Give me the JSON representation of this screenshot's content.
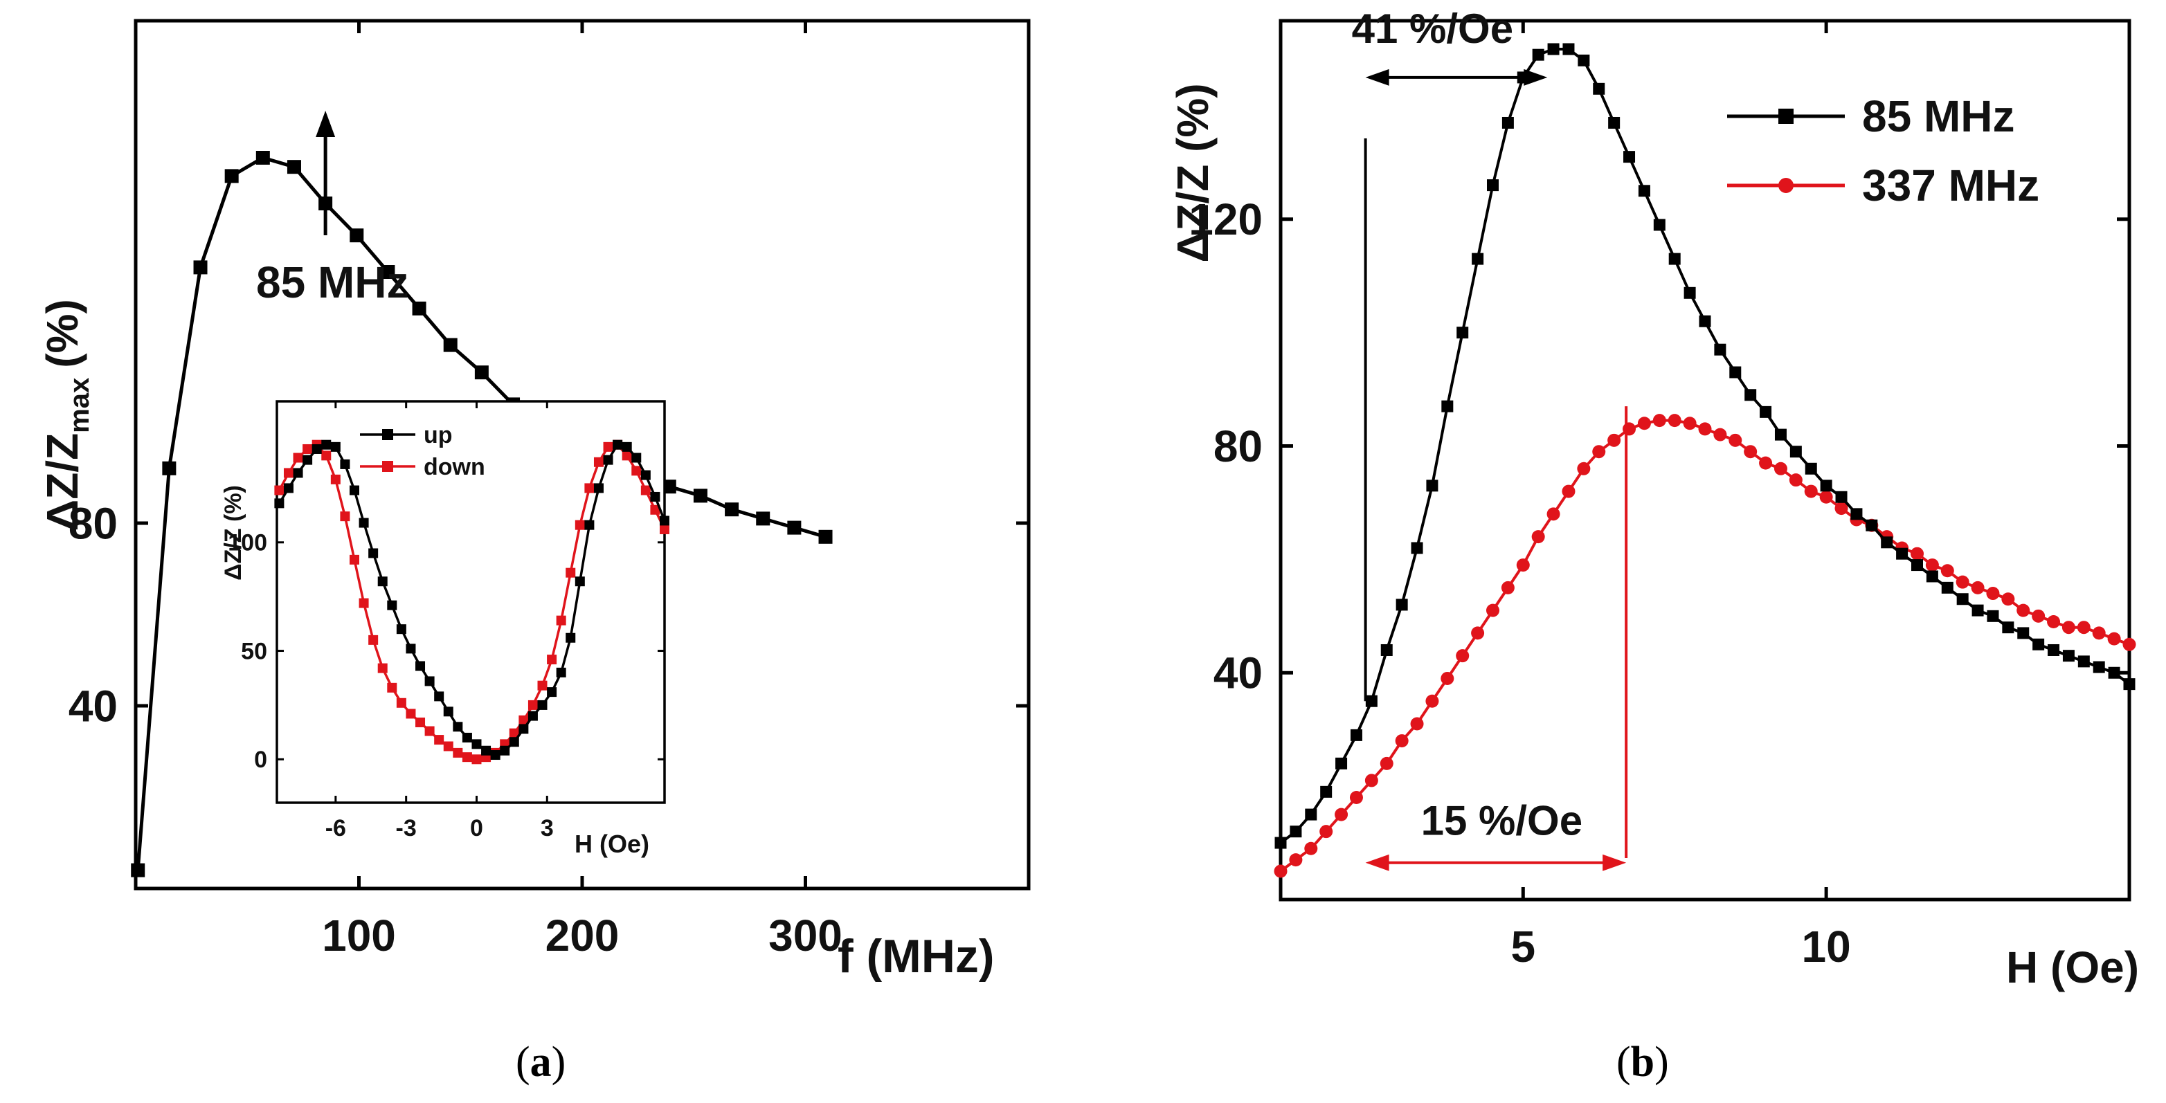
{
  "chart_data": [
    {
      "id": "a",
      "type": "line",
      "caption": "(a)",
      "caption_letter": "a",
      "ylabel": "ΔZ/Z",
      "ylabel_sub": "max",
      "ylabel_unit": "(%)",
      "xlabel": "f (MHz)",
      "xlim": [
        0,
        400
      ],
      "ylim": [
        0,
        190
      ],
      "xticks": [
        100,
        200,
        300
      ],
      "yticks": [
        40,
        80
      ],
      "annotation": "85 MHz",
      "annotation_x": 85,
      "series": [
        {
          "color": "#000000",
          "marker": "square",
          "x": [
            1,
            15,
            29,
            43,
            57,
            71,
            85,
            99,
            113,
            127,
            141,
            155,
            169,
            183,
            197,
            211,
            225,
            239,
            253,
            267,
            281,
            295,
            309
          ],
          "y": [
            4,
            92,
            136,
            156,
            160,
            158,
            150,
            143,
            135,
            127,
            119,
            113,
            106,
            101,
            96,
            93,
            90,
            88,
            86,
            83,
            81,
            79,
            77
          ]
        }
      ]
    },
    {
      "id": "a-inset",
      "type": "line",
      "ylabel": "ΔZ/Z (%)",
      "xlabel": "H (Oe)",
      "xlim": [
        -8.5,
        8
      ],
      "ylim": [
        -20,
        165
      ],
      "xticks": [
        -6,
        -3,
        0,
        3
      ],
      "xtick_labels": [
        "-6",
        "-3",
        "0",
        "3"
      ],
      "yticks": [
        0,
        50,
        100
      ],
      "legend_position": "top",
      "series": [
        {
          "name": "up",
          "color": "#000000",
          "marker": "square",
          "x": [
            -8.4,
            -8,
            -7.6,
            -7.2,
            -6.8,
            -6.4,
            -6,
            -5.6,
            -5.2,
            -4.8,
            -4.4,
            -4,
            -3.6,
            -3.2,
            -2.8,
            -2.4,
            -2,
            -1.6,
            -1.2,
            -0.8,
            -0.4,
            0,
            0.4,
            0.8,
            1.2,
            1.6,
            2,
            2.4,
            2.8,
            3.2,
            3.6,
            4,
            4.4,
            4.8,
            5.2,
            5.6,
            6,
            6.4,
            6.8,
            7.2,
            7.6,
            8
          ],
          "y": [
            118,
            125,
            132,
            138,
            143,
            145,
            144,
            136,
            124,
            109,
            95,
            82,
            71,
            60,
            51,
            43,
            36,
            29,
            22,
            15,
            10,
            7,
            4,
            2,
            4,
            8,
            14,
            20,
            25,
            31,
            40,
            56,
            82,
            108,
            125,
            138,
            145,
            144,
            139,
            131,
            121,
            110
          ]
        },
        {
          "name": "down",
          "color": "#e0141b",
          "marker": "square",
          "x": [
            -8.4,
            -8,
            -7.6,
            -7.2,
            -6.8,
            -6.4,
            -6,
            -5.6,
            -5.2,
            -4.8,
            -4.4,
            -4,
            -3.6,
            -3.2,
            -2.8,
            -2.4,
            -2,
            -1.6,
            -1.2,
            -0.8,
            -0.4,
            0,
            0.4,
            0.8,
            1.2,
            1.6,
            2,
            2.4,
            2.8,
            3.2,
            3.6,
            4,
            4.4,
            4.8,
            5.2,
            5.6,
            6,
            6.4,
            6.8,
            7.2,
            7.6,
            8
          ],
          "y": [
            124,
            132,
            139,
            143,
            145,
            140,
            129,
            112,
            92,
            72,
            55,
            42,
            33,
            26,
            21,
            17,
            13,
            9,
            6,
            3,
            1,
            0,
            1,
            3,
            7,
            12,
            18,
            25,
            34,
            46,
            64,
            86,
            108,
            125,
            137,
            144,
            145,
            140,
            133,
            124,
            115,
            106
          ]
        }
      ]
    },
    {
      "id": "b",
      "type": "line",
      "caption": "(b)",
      "caption_letter": "b",
      "ylabel": "ΔZ/Z (%)",
      "xlabel": "H (Oe)",
      "xlim": [
        1,
        15
      ],
      "ylim": [
        0,
        155
      ],
      "xticks": [
        5,
        10
      ],
      "yticks": [
        40,
        80,
        120
      ],
      "legend_position": "top-right",
      "annotations": [
        {
          "text": "41 %/Oe",
          "color": "#000000",
          "x_from": 2.4,
          "x_to": 5.4,
          "y": 145,
          "vline_x": 2.4,
          "vline_from": 35
        },
        {
          "text": "15 %/Oe",
          "color": "#e0141b",
          "x_from": 2.4,
          "x_to": 6.7,
          "y": 6.5,
          "vline_x": 6.7,
          "vline_from": 87
        }
      ],
      "series": [
        {
          "name": "85 MHz",
          "color": "#000000",
          "marker": "square",
          "x": [
            1,
            1.25,
            1.5,
            1.75,
            2,
            2.25,
            2.5,
            2.75,
            3,
            3.25,
            3.5,
            3.75,
            4,
            4.25,
            4.5,
            4.75,
            5,
            5.25,
            5.5,
            5.75,
            6,
            6.25,
            6.5,
            6.75,
            7,
            7.25,
            7.5,
            7.75,
            8,
            8.25,
            8.5,
            8.75,
            9,
            9.25,
            9.5,
            9.75,
            10,
            10.25,
            10.5,
            10.75,
            11,
            11.25,
            11.5,
            11.75,
            12,
            12.25,
            12.5,
            12.75,
            13,
            13.25,
            13.5,
            13.75,
            14,
            14.25,
            14.5,
            14.75,
            15
          ],
          "y": [
            10,
            12,
            15,
            19,
            24,
            29,
            35,
            44,
            52,
            62,
            73,
            87,
            100,
            113,
            126,
            137,
            145,
            149,
            150,
            150,
            148,
            143,
            137,
            131,
            125,
            119,
            113,
            107,
            102,
            97,
            93,
            89,
            86,
            82,
            79,
            76,
            73,
            71,
            68,
            66,
            63,
            61,
            59,
            57,
            55,
            53,
            51,
            50,
            48,
            47,
            45,
            44,
            43,
            42,
            41,
            40,
            38
          ]
        },
        {
          "name": "337 MHz",
          "color": "#e0141b",
          "marker": "circle",
          "x": [
            1,
            1.25,
            1.5,
            1.75,
            2,
            2.25,
            2.5,
            2.75,
            3,
            3.25,
            3.5,
            3.75,
            4,
            4.25,
            4.5,
            4.75,
            5,
            5.25,
            5.5,
            5.75,
            6,
            6.25,
            6.5,
            6.75,
            7,
            7.25,
            7.5,
            7.75,
            8,
            8.25,
            8.5,
            8.75,
            9,
            9.25,
            9.5,
            9.75,
            10,
            10.25,
            10.5,
            10.75,
            11,
            11.25,
            11.5,
            11.75,
            12,
            12.25,
            12.5,
            12.75,
            13,
            13.25,
            13.5,
            13.75,
            14,
            14.25,
            14.5,
            14.75,
            15
          ],
          "y": [
            5,
            7,
            9,
            12,
            15,
            18,
            21,
            24,
            28,
            31,
            35,
            39,
            43,
            47,
            51,
            55,
            59,
            64,
            68,
            72,
            76,
            79,
            81,
            83,
            84,
            84.5,
            84.5,
            84,
            83,
            82,
            81,
            79,
            77,
            76,
            74,
            72,
            71,
            69,
            67,
            66,
            64,
            62,
            61,
            59,
            58,
            56,
            55,
            54,
            53,
            51,
            50,
            49,
            48,
            48,
            47,
            46,
            45
          ]
        }
      ]
    }
  ]
}
